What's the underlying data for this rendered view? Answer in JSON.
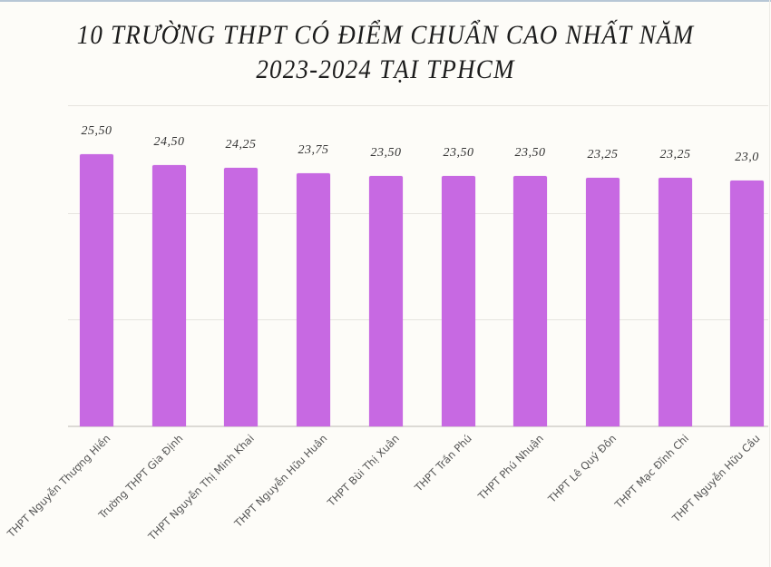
{
  "title": {
    "line1": "10 TRƯỜNG THPT CÓ ĐIỂM CHUẨN CAO NHẤT NĂM",
    "line2": "2023-2024 TẠI TPHCM"
  },
  "colors": {
    "bar": "#c769e2",
    "background": "#fdfcf8",
    "gridline": "#e6e4df",
    "text": "#1c1c1c"
  },
  "bars": [
    {
      "label": "THPT Nguyễn Thượng Hiền",
      "value_label": "25,50"
    },
    {
      "label": "Trường THPT Gia Định",
      "value_label": "24,50"
    },
    {
      "label": "THPT Nguyễn Thị Minh Khai",
      "value_label": "24,25"
    },
    {
      "label": "THPT Nguyễn Hữu Huân",
      "value_label": "23,75"
    },
    {
      "label": "THPT Bùi Thị Xuân",
      "value_label": "23,50"
    },
    {
      "label": "THPT Trần Phú",
      "value_label": "23,50"
    },
    {
      "label": "THPT Phú Nhuận",
      "value_label": "23,50"
    },
    {
      "label": "THPT Lê Quý Đôn",
      "value_label": "23,25"
    },
    {
      "label": "THPT Mạc Đĩnh Chi",
      "value_label": "23,25"
    },
    {
      "label": "THPT Nguyễn Hữu Cầu",
      "value_label": "23,0"
    }
  ],
  "chart_data": {
    "type": "bar",
    "title": "10 TRƯỜNG THPT CÓ ĐIỂM CHUẨN CAO NHẤT NĂM 2023-2024 TẠI TPHCM",
    "categories": [
      "THPT Nguyễn Thượng Hiền",
      "Trường THPT Gia Định",
      "THPT Nguyễn Thị Minh Khai",
      "THPT Nguyễn Hữu Huân",
      "THPT Bùi Thị Xuân",
      "THPT Trần Phú",
      "THPT Phú Nhuận",
      "THPT Lê Quý Đôn",
      "THPT Mạc Đĩnh Chi",
      "THPT Nguyễn Hữu Cầu"
    ],
    "values": [
      25.5,
      24.5,
      24.25,
      23.75,
      23.5,
      23.5,
      23.5,
      23.25,
      23.25,
      23.0
    ],
    "data_labels": [
      "25,50",
      "24,50",
      "24,25",
      "23,75",
      "23,50",
      "23,50",
      "23,50",
      "23,25",
      "23,25",
      "23,0"
    ],
    "xlabel": "",
    "ylabel": "",
    "ylim": [
      0,
      30
    ],
    "gridlines": [
      10,
      20,
      30
    ],
    "grid": true,
    "y_axis_visible": false,
    "legend": null,
    "x_tick_rotation": -45
  }
}
